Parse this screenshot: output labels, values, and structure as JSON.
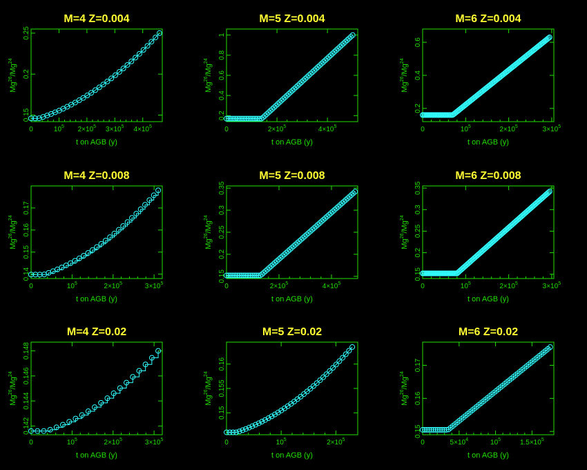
{
  "colors": {
    "background": "#000000",
    "axes": "#22e000",
    "title": "#ffff33",
    "series": "#33ffff"
  },
  "sup": {
    "e5": "5",
    "mg26": "26",
    "mg24": "24"
  },
  "chart_data": [
    {
      "type": "line",
      "title": "M=4   Z=0.004",
      "xlabel": "t on AGB (y)",
      "ylabel": {
        "base1": "Mg",
        "sup1": "26",
        "slash": "/Mg",
        "sup2": "24"
      },
      "xlim": [
        0,
        470000
      ],
      "ylim": [
        0.142,
        0.255
      ],
      "xticks": [
        {
          "v": 0,
          "mant": "0"
        },
        {
          "v": 100000,
          "mant": "10"
        },
        {
          "v": 200000,
          "mant": "2×10"
        },
        {
          "v": 300000,
          "mant": "3×10"
        },
        {
          "v": 400000,
          "mant": "4×10"
        }
      ],
      "yticks": [
        {
          "v": 0.15,
          "t": "0.15"
        },
        {
          "v": 0.2,
          "t": "0.2"
        },
        {
          "v": 0.25,
          "t": "0.25"
        }
      ],
      "shape": "smooth",
      "start": 0.146,
      "end": 0.25,
      "xstart": 0,
      "xend": 460000,
      "flat": 0.06,
      "points": 33
    },
    {
      "type": "line",
      "title": "M=5   Z=0.004",
      "xlabel": "t on AGB (y)",
      "ylabel": {
        "base1": "Mg",
        "sup1": "26",
        "slash": "/Mg",
        "sup2": "24"
      },
      "xlim": [
        0,
        520000
      ],
      "ylim": [
        0.14,
        1.06
      ],
      "xticks": [
        {
          "v": 0,
          "mant": "0"
        },
        {
          "v": 200000,
          "mant": "2×10"
        },
        {
          "v": 400000,
          "mant": "4×10"
        }
      ],
      "yticks": [
        {
          "v": 0.2,
          "t": "0.2"
        },
        {
          "v": 0.4,
          "t": "0.4"
        },
        {
          "v": 0.6,
          "t": "0.6"
        },
        {
          "v": 0.8,
          "t": "0.8"
        },
        {
          "v": 1,
          "t": "1"
        }
      ],
      "shape": "kink",
      "start": 0.17,
      "end": 1.0,
      "xstart": 0,
      "xend": 500000,
      "kink": 140000,
      "points": 70
    },
    {
      "type": "line",
      "title": "M=6   Z=0.004",
      "xlabel": "t on AGB (y)",
      "ylabel": {
        "base1": "Mg",
        "sup1": "26",
        "slash": "/Mg",
        "sup2": "24"
      },
      "xlim": [
        0,
        305000
      ],
      "ylim": [
        0.12,
        0.68
      ],
      "xticks": [
        {
          "v": 0,
          "mant": "0"
        },
        {
          "v": 100000,
          "mant": "10"
        },
        {
          "v": 200000,
          "mant": "2×10"
        },
        {
          "v": 300000,
          "mant": "3×10"
        }
      ],
      "yticks": [
        {
          "v": 0.2,
          "t": "0.2"
        },
        {
          "v": 0.4,
          "t": "0.4"
        },
        {
          "v": 0.6,
          "t": "0.6"
        }
      ],
      "shape": "kink",
      "start": 0.16,
      "end": 0.63,
      "xstart": 0,
      "xend": 295000,
      "kink": 70000,
      "points": 130
    },
    {
      "type": "line",
      "title": "M=4   Z=0.008",
      "xlabel": "t on AGB (y)",
      "ylabel": {
        "base1": "Mg",
        "sup1": "26",
        "slash": "/Mg",
        "sup2": "24"
      },
      "xlim": [
        0,
        320000
      ],
      "ylim": [
        0.138,
        0.18
      ],
      "xticks": [
        {
          "v": 0,
          "mant": "0"
        },
        {
          "v": 100000,
          "mant": "10"
        },
        {
          "v": 200000,
          "mant": "2×10"
        },
        {
          "v": 300000,
          "mant": "3×10"
        }
      ],
      "yticks": [
        {
          "v": 0.14,
          "t": "0.14"
        },
        {
          "v": 0.15,
          "t": "0.15"
        },
        {
          "v": 0.16,
          "t": "0.16"
        },
        {
          "v": 0.17,
          "t": "0.17"
        }
      ],
      "shape": "step",
      "start": 0.1398,
      "end": 0.178,
      "xstart": 0,
      "xend": 310000,
      "flat": 0.1,
      "points": 30
    },
    {
      "type": "line",
      "title": "M=5   Z=0.008",
      "xlabel": "t on AGB (y)",
      "ylabel": {
        "base1": "Mg",
        "sup1": "26",
        "slash": "/Mg",
        "sup2": "24"
      },
      "xlim": [
        0,
        500000
      ],
      "ylim": [
        0.145,
        0.355
      ],
      "xticks": [
        {
          "v": 0,
          "mant": "0"
        },
        {
          "v": 200000,
          "mant": "2×10"
        },
        {
          "v": 400000,
          "mant": "4×10"
        }
      ],
      "yticks": [
        {
          "v": 0.15,
          "t": "0.15"
        },
        {
          "v": 0.2,
          "t": "0.2"
        },
        {
          "v": 0.25,
          "t": "0.25"
        },
        {
          "v": 0.3,
          "t": "0.3"
        },
        {
          "v": 0.35,
          "t": "0.35"
        }
      ],
      "shape": "kink",
      "start": 0.152,
      "end": 0.342,
      "xstart": 0,
      "xend": 490000,
      "kink": 130000,
      "points": 70
    },
    {
      "type": "line",
      "title": "M=6   Z=0.008",
      "xlabel": "t on AGB (y)",
      "ylabel": {
        "base1": "Mg",
        "sup1": "26",
        "slash": "/Mg",
        "sup2": "24"
      },
      "xlim": [
        0,
        305000
      ],
      "ylim": [
        0.14,
        0.355
      ],
      "xticks": [
        {
          "v": 0,
          "mant": "0"
        },
        {
          "v": 100000,
          "mant": "10"
        },
        {
          "v": 200000,
          "mant": "2×10"
        },
        {
          "v": 300000,
          "mant": "3×10"
        }
      ],
      "yticks": [
        {
          "v": 0.15,
          "t": "0.15"
        },
        {
          "v": 0.2,
          "t": "0.2"
        },
        {
          "v": 0.25,
          "t": "0.25"
        },
        {
          "v": 0.3,
          "t": "0.3"
        },
        {
          "v": 0.35,
          "t": "0.35"
        }
      ],
      "shape": "kink",
      "start": 0.152,
      "end": 0.342,
      "xstart": 0,
      "xend": 295000,
      "kink": 80000,
      "points": 130
    },
    {
      "type": "line",
      "title": "M=4   Z=0.02",
      "xlabel": "t on AGB (y)",
      "ylabel": {
        "base1": "Mg",
        "sup1": "26",
        "slash": "/Mg",
        "sup2": "24"
      },
      "xlim": [
        0,
        320000
      ],
      "ylim": [
        0.1413,
        0.1487
      ],
      "xticks": [
        {
          "v": 0,
          "mant": "0"
        },
        {
          "v": 100000,
          "mant": "10"
        },
        {
          "v": 200000,
          "mant": "2×10"
        },
        {
          "v": 300000,
          "mant": "3×10"
        }
      ],
      "yticks": [
        {
          "v": 0.142,
          "t": "0.142"
        },
        {
          "v": 0.144,
          "t": "0.144"
        },
        {
          "v": 0.146,
          "t": "0.146"
        },
        {
          "v": 0.148,
          "t": "0.148"
        }
      ],
      "shape": "step",
      "start": 0.1416,
      "end": 0.148,
      "xstart": 0,
      "xend": 310000,
      "flat": 0.12,
      "points": 21
    },
    {
      "type": "line",
      "title": "M=5   Z=0.02",
      "xlabel": "t on AGB (y)",
      "ylabel": {
        "base1": "Mg",
        "sup1": "26",
        "slash": "/Mg",
        "sup2": "24"
      },
      "xlim": [
        0,
        240000
      ],
      "ylim": [
        0.1455,
        0.1645
      ],
      "xticks": [
        {
          "v": 0,
          "mant": "0"
        },
        {
          "v": 100000,
          "mant": "10"
        },
        {
          "v": 200000,
          "mant": "2×10"
        }
      ],
      "yticks": [
        {
          "v": 0.15,
          "t": "0.15"
        },
        {
          "v": 0.155,
          "t": "0.155"
        },
        {
          "v": 0.16,
          "t": "0.16"
        }
      ],
      "shape": "smooth",
      "start": 0.146,
      "end": 0.1635,
      "xstart": 0,
      "xend": 230000,
      "flat": 0.08,
      "points": 40
    },
    {
      "type": "line",
      "title": "M=6   Z=0.02",
      "xlabel": "t on AGB (y)",
      "ylabel": {
        "base1": "Mg",
        "sup1": "26",
        "slash": "/Mg",
        "sup2": "24"
      },
      "xlim": [
        0,
        180000
      ],
      "ylim": [
        0.149,
        0.177
      ],
      "xticks": [
        {
          "v": 0,
          "mant": "0"
        },
        {
          "v": 50000,
          "mant": "5×10",
          "sup": "4"
        },
        {
          "v": 100000,
          "mant": "10"
        },
        {
          "v": 150000,
          "mant": "1.5×10"
        }
      ],
      "yticks": [
        {
          "v": 0.15,
          "t": "0.15"
        },
        {
          "v": 0.16,
          "t": "0.16"
        },
        {
          "v": 0.17,
          "t": "0.17"
        }
      ],
      "shape": "kink",
      "start": 0.1505,
      "end": 0.1755,
      "xstart": 0,
      "xend": 175000,
      "kink": 35000,
      "points": 60
    }
  ]
}
